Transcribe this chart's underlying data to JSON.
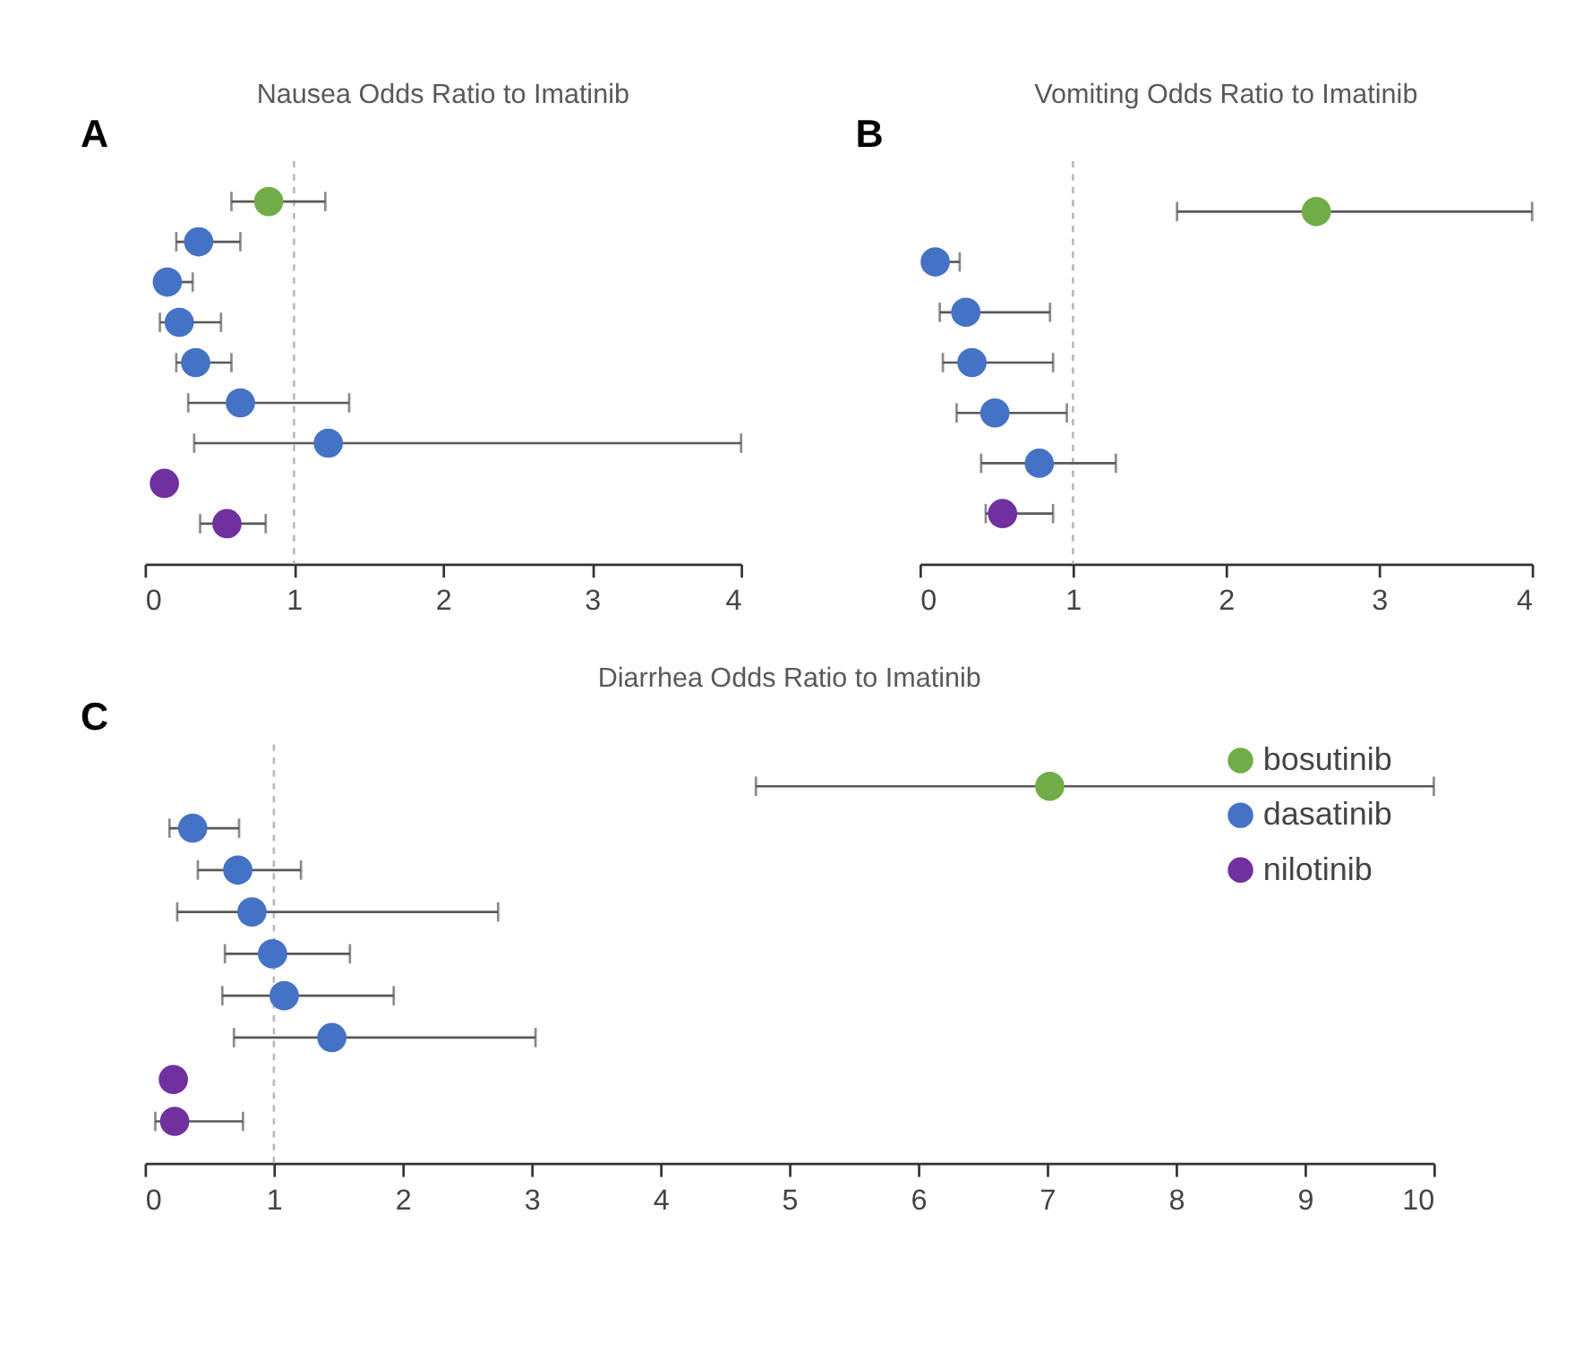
{
  "chart_data": [
    {
      "type": "scatter",
      "orientation": "horizontal",
      "title": "Nausea Odds Ratio to Imatinib",
      "annotations": [
        "A"
      ],
      "categories": [
        null,
        null,
        null,
        null,
        null,
        null,
        null,
        null,
        null
      ],
      "xlim": [
        0,
        4
      ],
      "xticks": [
        0,
        1,
        2,
        3,
        4
      ],
      "tick_labels": "x",
      "grid": false,
      "marker": "circle",
      "ref_lines": [
        {
          "axis": "x",
          "value": 1,
          "color": "#bbbbbb",
          "line_style": "dashed"
        }
      ],
      "series": [
        {
          "color": "#70ad47",
          "values": [
            0.83,
            null,
            null,
            null,
            null,
            null,
            null,
            null,
            null
          ],
          "errors": [
            [
              0.58,
              1.21
            ],
            null,
            null,
            null,
            null,
            null,
            null,
            null,
            null
          ]
        },
        {
          "color": "#4472c4",
          "values": [
            null,
            0.36,
            0.15,
            0.23,
            0.34,
            0.64,
            1.23,
            null,
            null
          ],
          "errors": [
            null,
            [
              0.21,
              0.64
            ],
            [
              0.15,
              0.32
            ],
            [
              0.1,
              0.51
            ],
            [
              0.21,
              0.58
            ],
            [
              0.29,
              1.37
            ],
            [
              0.33,
              4.0
            ],
            null,
            null
          ]
        },
        {
          "color": "#7030a0",
          "values": [
            null,
            null,
            null,
            null,
            null,
            null,
            null,
            0.13,
            0.55
          ],
          "errors": [
            null,
            null,
            null,
            null,
            null,
            null,
            null,
            null,
            [
              0.37,
              0.81
            ]
          ]
        }
      ]
    },
    {
      "type": "scatter",
      "orientation": "horizontal",
      "title": "Vomiting Odds Ratio to Imatinib",
      "annotations": [
        "B"
      ],
      "categories": [
        null,
        null,
        null,
        null,
        null,
        null,
        null
      ],
      "xlim": [
        0,
        4
      ],
      "xticks": [
        0,
        1,
        2,
        3,
        4
      ],
      "tick_labels": "x",
      "grid": false,
      "marker": "circle",
      "ref_lines": [
        {
          "axis": "x",
          "value": 1,
          "color": "#bbbbbb",
          "line_style": "dashed"
        }
      ],
      "series": [
        {
          "color": "#70ad47",
          "values": [
            2.59,
            null,
            null,
            null,
            null,
            null,
            null
          ],
          "errors": [
            [
              1.68,
              4.0
            ],
            null,
            null,
            null,
            null,
            null,
            null
          ]
        },
        {
          "color": "#4472c4",
          "values": [
            null,
            0.1,
            0.3,
            0.34,
            0.49,
            0.78,
            null
          ],
          "errors": [
            null,
            [
              0.1,
              0.26
            ],
            [
              0.13,
              0.85
            ],
            [
              0.15,
              0.87
            ],
            [
              0.24,
              0.96
            ],
            [
              0.4,
              1.28
            ],
            null
          ]
        },
        {
          "color": "#7030a0",
          "values": [
            null,
            null,
            null,
            null,
            null,
            null,
            0.54
          ],
          "errors": [
            null,
            null,
            null,
            null,
            null,
            null,
            [
              0.43,
              0.87
            ]
          ]
        }
      ]
    },
    {
      "type": "scatter",
      "orientation": "horizontal",
      "title": "Diarrhea Odds Ratio to Imatinib",
      "annotations": [
        "C"
      ],
      "categories": [
        null,
        null,
        null,
        null,
        null,
        null,
        null,
        null,
        null
      ],
      "xlim": [
        0,
        10
      ],
      "xticks": [
        0,
        1,
        2,
        3,
        4,
        5,
        6,
        7,
        8,
        9,
        10
      ],
      "tick_labels": "x",
      "grid": false,
      "marker": "circle",
      "legend": "right",
      "ref_lines": [
        {
          "axis": "x",
          "value": 1,
          "color": "#bbbbbb",
          "line_style": "dashed"
        }
      ],
      "series": [
        {
          "name": "bosutinib",
          "color": "#70ad47",
          "values": [
            7.02,
            null,
            null,
            null,
            null,
            null,
            null,
            null,
            null
          ],
          "errors": [
            [
              4.74,
              10.0
            ],
            null,
            null,
            null,
            null,
            null,
            null,
            null,
            null
          ]
        },
        {
          "name": "dasatinib",
          "color": "#4472c4",
          "values": [
            null,
            0.37,
            0.72,
            0.83,
            0.99,
            1.08,
            1.45,
            null,
            null
          ],
          "errors": [
            null,
            [
              0.19,
              0.73
            ],
            [
              0.41,
              1.21
            ],
            [
              0.25,
              2.74
            ],
            [
              0.62,
              1.59
            ],
            [
              0.6,
              1.93
            ],
            [
              0.69,
              3.03
            ],
            null,
            null
          ]
        },
        {
          "name": "nilotinib",
          "color": "#7030a0",
          "values": [
            null,
            null,
            null,
            null,
            null,
            null,
            null,
            0.22,
            0.23
          ],
          "errors": [
            null,
            null,
            null,
            null,
            null,
            null,
            null,
            null,
            [
              0.08,
              0.76
            ]
          ]
        }
      ]
    }
  ]
}
